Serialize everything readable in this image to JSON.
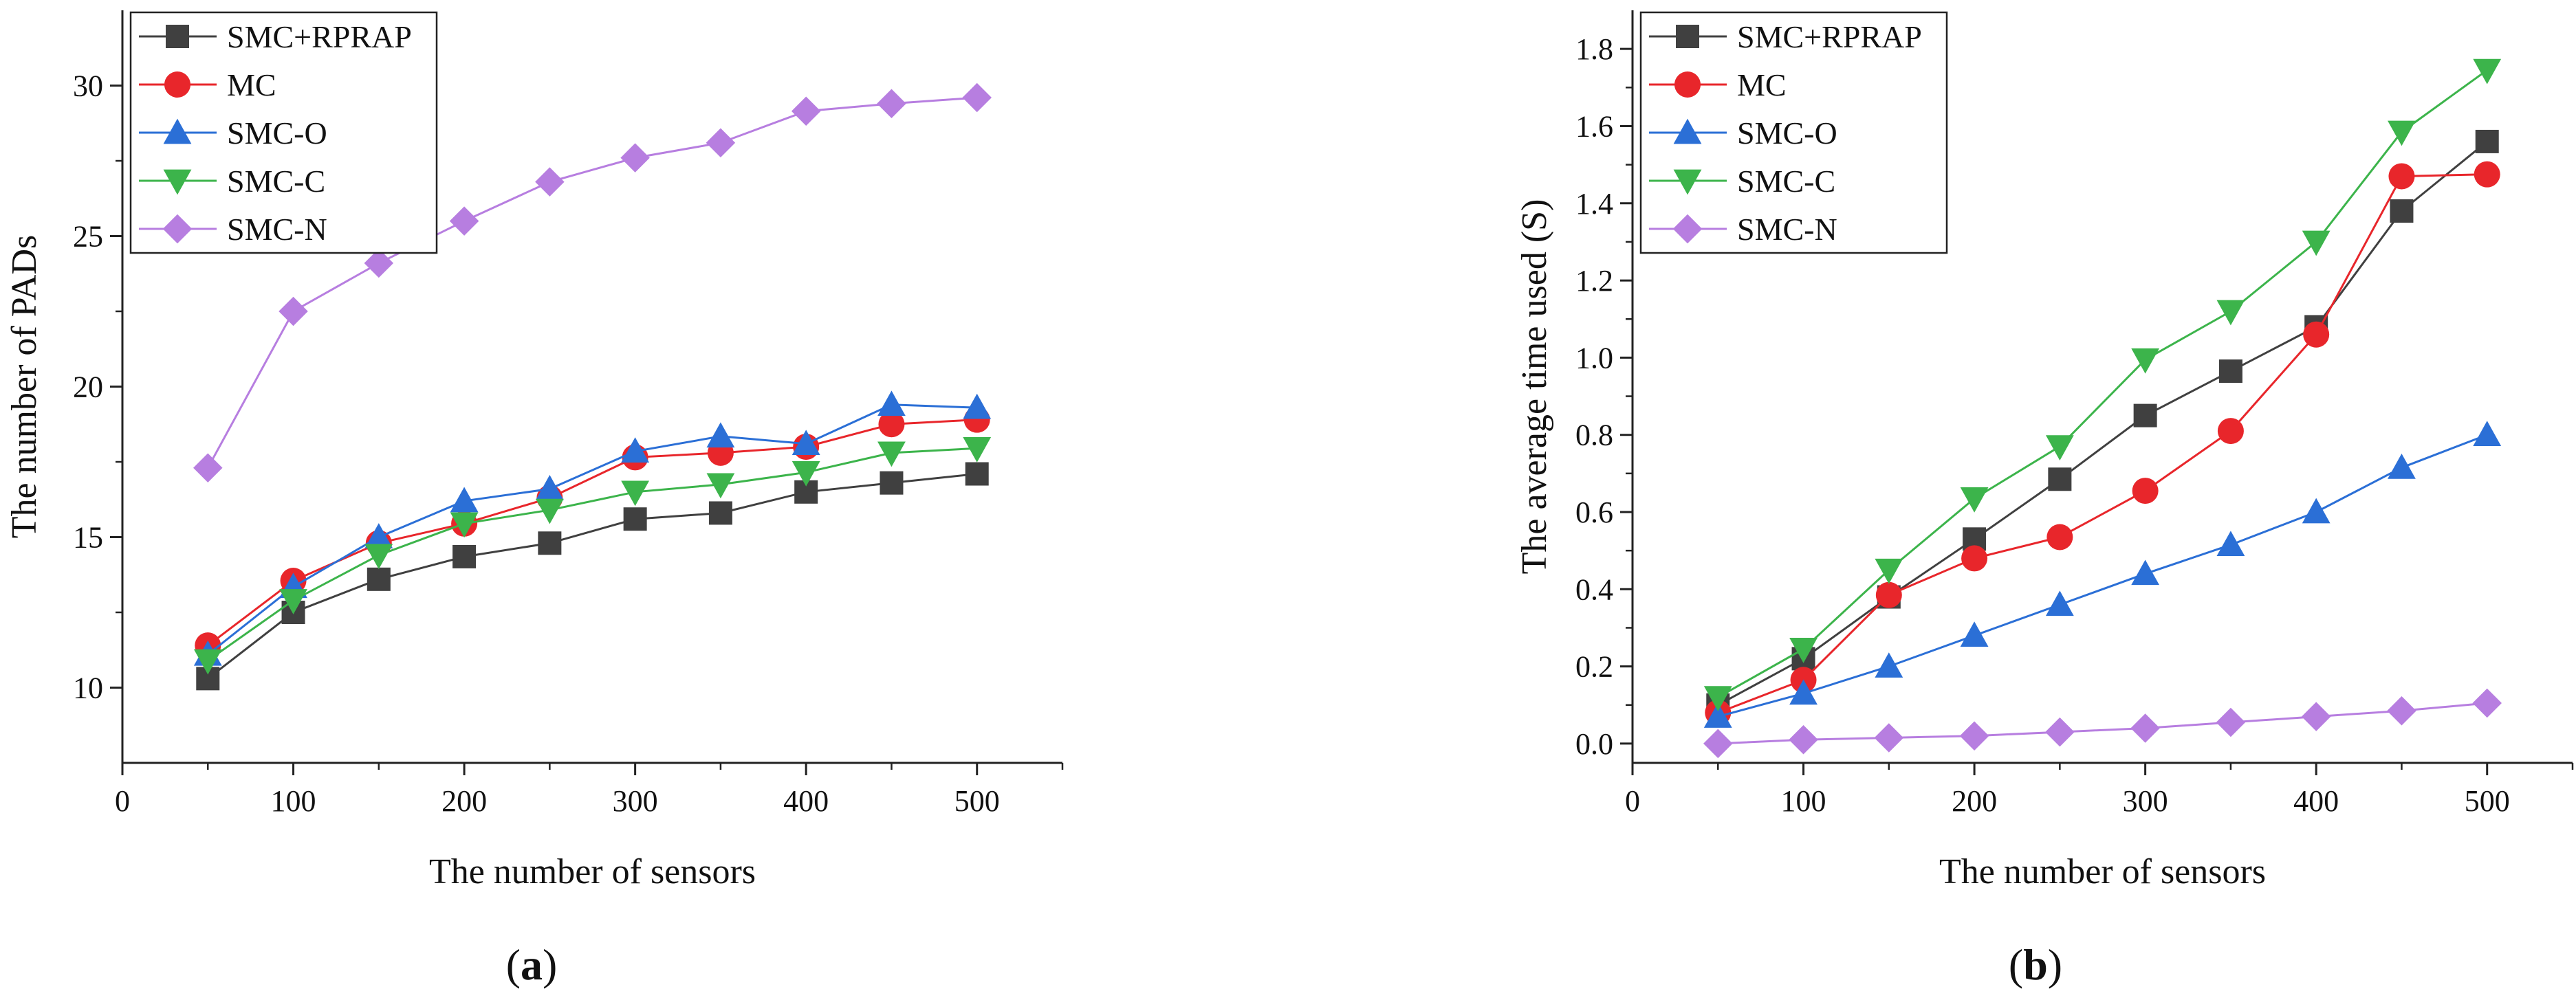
{
  "chart_data": [
    {
      "type": "line",
      "id": "a",
      "caption": {
        "open": "(",
        "label": "a",
        "close": ")"
      },
      "xlabel": "The number of sensors",
      "ylabel": "The number of PADs",
      "xlim": [
        0,
        550
      ],
      "ylim": [
        7.5,
        32.5
      ],
      "xticks": [
        0,
        100,
        200,
        300,
        400,
        500
      ],
      "yticks": [
        10,
        15,
        20,
        25,
        30
      ],
      "legend_position": "top-left",
      "x": [
        50,
        100,
        150,
        200,
        250,
        300,
        350,
        400,
        450,
        500
      ],
      "series": [
        {
          "name": "SMC+RPRAP",
          "marker": "square",
          "color": "#404040",
          "values": [
            10.3,
            12.5,
            13.6,
            14.35,
            14.8,
            15.6,
            15.8,
            16.5,
            16.8,
            17.1
          ]
        },
        {
          "name": "MC",
          "marker": "circle",
          "color": "#e8262b",
          "values": [
            11.4,
            13.55,
            14.8,
            15.45,
            16.3,
            17.65,
            17.8,
            18.0,
            18.75,
            18.9
          ]
        },
        {
          "name": "SMC-O",
          "marker": "triangle-up",
          "color": "#2b6fd6",
          "values": [
            11.1,
            13.35,
            15.0,
            16.2,
            16.6,
            17.85,
            18.35,
            18.1,
            19.4,
            19.3
          ]
        },
        {
          "name": "SMC-C",
          "marker": "triangle-down",
          "color": "#3cb44b",
          "values": [
            10.9,
            12.9,
            14.4,
            15.45,
            15.9,
            16.5,
            16.75,
            17.15,
            17.8,
            17.95
          ]
        },
        {
          "name": "SMC-N",
          "marker": "diamond",
          "color": "#b77ee0",
          "values": [
            17.3,
            22.5,
            24.1,
            25.5,
            26.8,
            27.6,
            28.1,
            29.15,
            29.4,
            29.6
          ]
        }
      ]
    },
    {
      "type": "line",
      "id": "b",
      "caption": {
        "open": "(",
        "label": "b",
        "close": ")"
      },
      "xlabel": "The number of sensors",
      "ylabel": "The average time used (S)",
      "xlim": [
        0,
        550
      ],
      "ylim": [
        -0.05,
        1.9
      ],
      "xticks": [
        0,
        100,
        200,
        300,
        400,
        500
      ],
      "yticks": [
        "0.0",
        "0.2",
        "0.4",
        "0.6",
        "0.8",
        "1.0",
        "1.2",
        "1.4",
        "1.6",
        "1.8"
      ],
      "legend_position": "top-left",
      "x": [
        50,
        100,
        150,
        200,
        250,
        300,
        350,
        400,
        450,
        500
      ],
      "series": [
        {
          "name": "SMC+RPRAP",
          "marker": "square",
          "color": "#404040",
          "values": [
            0.1,
            0.22,
            0.38,
            0.53,
            0.685,
            0.85,
            0.965,
            1.08,
            1.38,
            1.56
          ]
        },
        {
          "name": "MC",
          "marker": "circle",
          "color": "#e8262b",
          "values": [
            0.08,
            0.165,
            0.385,
            0.48,
            0.535,
            0.655,
            0.81,
            1.06,
            1.47,
            1.475
          ]
        },
        {
          "name": "SMC-O",
          "marker": "triangle-up",
          "color": "#2b6fd6",
          "values": [
            0.07,
            0.13,
            0.2,
            0.28,
            0.36,
            0.44,
            0.515,
            0.6,
            0.715,
            0.8
          ]
        },
        {
          "name": "SMC-C",
          "marker": "triangle-down",
          "color": "#3cb44b",
          "values": [
            0.12,
            0.245,
            0.45,
            0.635,
            0.77,
            0.995,
            1.12,
            1.3,
            1.585,
            1.745
          ]
        },
        {
          "name": "SMC-N",
          "marker": "diamond",
          "color": "#b77ee0",
          "values": [
            0.0,
            0.01,
            0.015,
            0.02,
            0.03,
            0.04,
            0.055,
            0.07,
            0.085,
            0.105
          ]
        }
      ]
    }
  ]
}
